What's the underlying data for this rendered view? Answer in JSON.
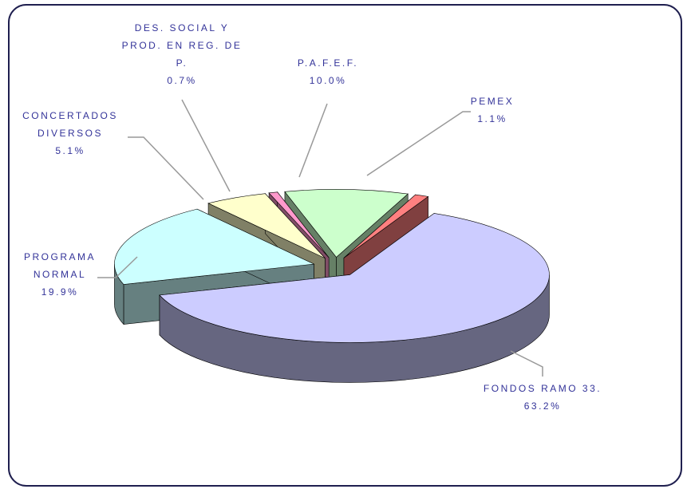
{
  "chart_data": {
    "type": "pie3d",
    "categories": [
      "FONDOS RAMO 33.",
      "PROGRAMA NORMAL",
      "CONCERTADOS DIVERSOS",
      "DES. SOCIAL Y PROD. EN REG. DE P.",
      "P.A.F.E.F.",
      "PEMEX"
    ],
    "values": [
      63.2,
      19.9,
      5.1,
      0.7,
      10.0,
      1.1
    ],
    "value_labels": [
      "63.2%",
      "19.9%",
      "5.1%",
      "0.7%",
      "10.0%",
      "1.1%"
    ],
    "colors": [
      "#ccccff",
      "#ccffff",
      "#ffffcc",
      "#ff99cc",
      "#ccffcc",
      "#ff8080"
    ]
  }
}
